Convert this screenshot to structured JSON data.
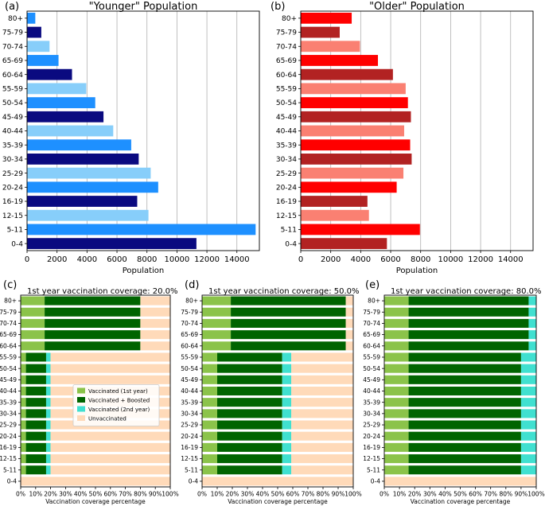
{
  "chart_data": [
    {
      "panel": "(a)",
      "type": "bar",
      "orientation": "horizontal",
      "title": "\"Younger\" Population",
      "xlabel": "Population",
      "ylabel": "",
      "xlim": [
        0,
        15500
      ],
      "xticks": [
        "0",
        "2000",
        "4000",
        "6000",
        "8000",
        "10000",
        "12000",
        "14000"
      ],
      "xtick_values": [
        0,
        2000,
        4000,
        6000,
        8000,
        10000,
        12000,
        14000
      ],
      "grid": "vertical",
      "categories": [
        "0-4",
        "5-11",
        "12-15",
        "16-19",
        "20-24",
        "25-29",
        "30-34",
        "35-39",
        "40-44",
        "45-49",
        "50-54",
        "55-59",
        "60-64",
        "65-69",
        "70-74",
        "75-79",
        "80+"
      ],
      "values": [
        11300,
        15250,
        8100,
        7350,
        8750,
        8250,
        7450,
        6950,
        5750,
        5100,
        4550,
        3950,
        3000,
        2100,
        1500,
        950,
        550
      ],
      "colors": [
        "#0a0a80",
        "#1e90ff",
        "#87cefa",
        "#0a0a80",
        "#1e90ff",
        "#87cefa",
        "#0a0a80",
        "#1e90ff",
        "#87cefa",
        "#0a0a80",
        "#1e90ff",
        "#87cefa",
        "#0a0a80",
        "#1e90ff",
        "#87cefa",
        "#0a0a80",
        "#1e90ff"
      ]
    },
    {
      "panel": "(b)",
      "type": "bar",
      "orientation": "horizontal",
      "title": "\"Older\" Population",
      "xlabel": "Population",
      "ylabel": "",
      "xlim": [
        0,
        15500
      ],
      "xticks": [
        "0",
        "2000",
        "4000",
        "6000",
        "8000",
        "10000",
        "12000",
        "14000"
      ],
      "xtick_values": [
        0,
        2000,
        4000,
        6000,
        8000,
        10000,
        12000,
        14000
      ],
      "grid": "vertical",
      "categories": [
        "0-4",
        "5-11",
        "12-15",
        "16-19",
        "20-24",
        "25-29",
        "30-34",
        "35-39",
        "40-44",
        "45-49",
        "50-54",
        "55-59",
        "60-64",
        "65-69",
        "70-74",
        "75-79",
        "80+"
      ],
      "values": [
        5750,
        7950,
        4550,
        4450,
        6400,
        6850,
        7400,
        7300,
        6900,
        7350,
        7150,
        7000,
        6150,
        5150,
        3950,
        2600,
        3400
      ],
      "colors": [
        "#b22222",
        "#ff0000",
        "#fa8072",
        "#b22222",
        "#ff0000",
        "#fa8072",
        "#b22222",
        "#ff0000",
        "#fa8072",
        "#b22222",
        "#ff0000",
        "#fa8072",
        "#b22222",
        "#ff0000",
        "#fa8072",
        "#b22222",
        "#ff0000"
      ]
    },
    {
      "panel": "(c)",
      "type": "bar",
      "orientation": "horizontal",
      "stacked": true,
      "title": "1st year vaccination coverage: 20.0%",
      "xlabel": "Vaccination coverage percentage",
      "xlim": [
        0,
        100
      ],
      "xticks": [
        "0%",
        "10%",
        "20%",
        "30%",
        "40%",
        "50%",
        "60%",
        "70%",
        "80%",
        "90%",
        "100%"
      ],
      "xtick_values": [
        0,
        10,
        20,
        30,
        40,
        50,
        60,
        70,
        80,
        90,
        100
      ],
      "categories": [
        "0-4",
        "5-11",
        "12-15",
        "16-19",
        "20-24",
        "25-29",
        "30-34",
        "35-39",
        "40-44",
        "45-49",
        "50-54",
        "55-59",
        "60-64",
        "65-69",
        "70-74",
        "75-79",
        "80+"
      ],
      "series": [
        {
          "name": "Vaccinated (1st year)",
          "values": [
            0,
            3.5,
            3.5,
            3.5,
            3.5,
            3.5,
            3.5,
            3.5,
            3.5,
            3.5,
            3.5,
            3.5,
            16,
            16,
            16,
            16,
            16
          ]
        },
        {
          "name": "Vaccinated + Boosted",
          "values": [
            0,
            13.5,
            13.5,
            13.5,
            13.5,
            13.5,
            13.5,
            13.5,
            13.5,
            13.5,
            13.5,
            13.5,
            64,
            64,
            64,
            64,
            64
          ]
        },
        {
          "name": "Vaccinated (2nd year)",
          "values": [
            0,
            3,
            3,
            3,
            3,
            3,
            3,
            3,
            3,
            3,
            3,
            3,
            0,
            0,
            0,
            0,
            0
          ]
        },
        {
          "name": "Unvaccinated",
          "values": [
            100,
            80,
            80,
            80,
            80,
            80,
            80,
            80,
            80,
            80,
            80,
            80,
            20,
            20,
            20,
            20,
            20
          ]
        }
      ],
      "legend": "lower-center"
    },
    {
      "panel": "(d)",
      "type": "bar",
      "orientation": "horizontal",
      "stacked": true,
      "title": "1st year vaccination coverage: 50.0%",
      "xlabel": "Vaccination coverage percentage",
      "xlim": [
        0,
        100
      ],
      "xticks": [
        "0%",
        "10%",
        "20%",
        "30%",
        "40%",
        "50%",
        "60%",
        "70%",
        "80%",
        "90%",
        "100%"
      ],
      "xtick_values": [
        0,
        10,
        20,
        30,
        40,
        50,
        60,
        70,
        80,
        90,
        100
      ],
      "categories": [
        "0-4",
        "5-11",
        "12-15",
        "16-19",
        "20-24",
        "25-29",
        "30-34",
        "35-39",
        "40-44",
        "45-49",
        "50-54",
        "55-59",
        "60-64",
        "65-69",
        "70-74",
        "75-79",
        "80+"
      ],
      "series": [
        {
          "name": "Vaccinated (1st year)",
          "values": [
            0,
            10,
            10,
            10,
            10,
            10,
            10,
            10,
            10,
            10,
            10,
            10,
            19,
            19,
            19,
            19,
            19
          ]
        },
        {
          "name": "Vaccinated + Boosted",
          "values": [
            0,
            43,
            43,
            43,
            43,
            43,
            43,
            43,
            43,
            43,
            43,
            43,
            76,
            76,
            76,
            76,
            76
          ]
        },
        {
          "name": "Vaccinated (2nd year)",
          "values": [
            0,
            6,
            6,
            6,
            6,
            6,
            6,
            6,
            6,
            6,
            6,
            6,
            0,
            0,
            0,
            0,
            0
          ]
        },
        {
          "name": "Unvaccinated",
          "values": [
            100,
            41,
            41,
            41,
            41,
            41,
            41,
            41,
            41,
            41,
            41,
            41,
            5,
            5,
            5,
            5,
            5
          ]
        }
      ]
    },
    {
      "panel": "(e)",
      "type": "bar",
      "orientation": "horizontal",
      "stacked": true,
      "title": "1st year vaccination coverage: 80.0%",
      "xlabel": "Vaccination coverage percentage",
      "xlim": [
        0,
        100
      ],
      "xticks": [
        "0%",
        "10%",
        "20%",
        "30%",
        "40%",
        "50%",
        "60%",
        "70%",
        "80%",
        "90%",
        "100%"
      ],
      "xtick_values": [
        0,
        10,
        20,
        30,
        40,
        50,
        60,
        70,
        80,
        90,
        100
      ],
      "categories": [
        "0-4",
        "5-11",
        "12-15",
        "16-19",
        "20-24",
        "25-29",
        "30-34",
        "35-39",
        "40-44",
        "45-49",
        "50-54",
        "55-59",
        "60-64",
        "65-69",
        "70-74",
        "75-79",
        "80+"
      ],
      "series": [
        {
          "name": "Vaccinated (1st year)",
          "values": [
            0,
            16,
            16,
            16,
            16,
            16,
            16,
            16,
            16,
            16,
            16,
            16,
            16,
            16,
            16,
            16,
            16
          ]
        },
        {
          "name": "Vaccinated + Boosted",
          "values": [
            0,
            74,
            74,
            74,
            74,
            74,
            74,
            74,
            74,
            74,
            74,
            74,
            79,
            79,
            79,
            79,
            79
          ]
        },
        {
          "name": "Vaccinated (2nd year)",
          "values": [
            0,
            10,
            10,
            10,
            10,
            10,
            10,
            10,
            10,
            10,
            10,
            10,
            5,
            5,
            5,
            5,
            5
          ]
        },
        {
          "name": "Unvaccinated",
          "values": [
            100,
            0,
            0,
            0,
            0,
            0,
            0,
            0,
            0,
            0,
            0,
            0,
            0,
            0,
            0,
            0,
            0
          ]
        }
      ]
    }
  ],
  "series_colors": {
    "Vaccinated (1st year)": "#8bc34a",
    "Vaccinated + Boosted": "#006400",
    "Vaccinated (2nd year)": "#40e0d0",
    "Unvaccinated": "#ffdab9"
  },
  "grid_color": "#b0b0b0"
}
